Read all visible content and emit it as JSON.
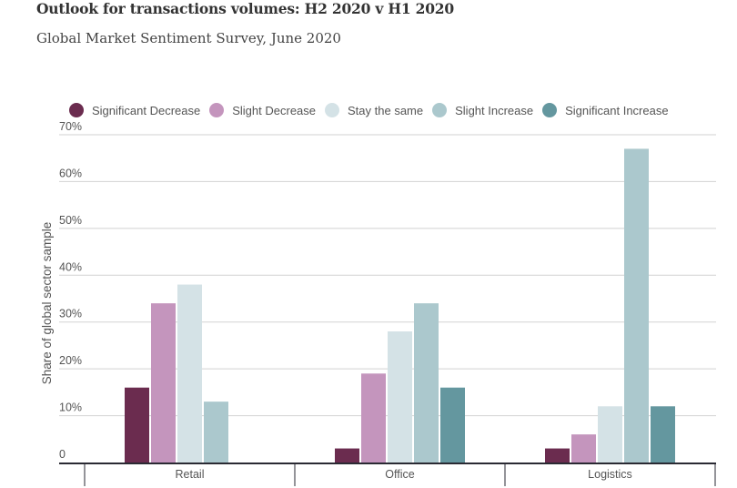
{
  "chart_data": {
    "type": "bar",
    "title": "Outlook for transactions volumes: H2 2020 v H1 2020",
    "subtitle": "Global Market Sentiment Survey, June 2020",
    "xlabel": "",
    "ylabel": "Share of global sector sample",
    "ylim": [
      0,
      70
    ],
    "yticks": [
      0,
      10,
      20,
      30,
      40,
      50,
      60,
      70
    ],
    "ytick_labels": [
      "0",
      "10%",
      "20%",
      "30%",
      "40%",
      "50%",
      "60%",
      "70%"
    ],
    "grid": true,
    "legend_position": "top",
    "categories": [
      "Retail",
      "Office",
      "Logistics"
    ],
    "series": [
      {
        "name": "Significant Decrease",
        "color": "#6b2c4f",
        "values": [
          16,
          3,
          3
        ]
      },
      {
        "name": "Slight Decrease",
        "color": "#c495bd",
        "values": [
          34,
          19,
          6
        ]
      },
      {
        "name": "Stay the same",
        "color": "#d4e2e6",
        "values": [
          38,
          28,
          12
        ]
      },
      {
        "name": "Slight Increase",
        "color": "#abc8cd",
        "values": [
          13,
          34,
          67
        ]
      },
      {
        "name": "Significant Increase",
        "color": "#64979f",
        "values": [
          0,
          16,
          12
        ]
      }
    ]
  }
}
